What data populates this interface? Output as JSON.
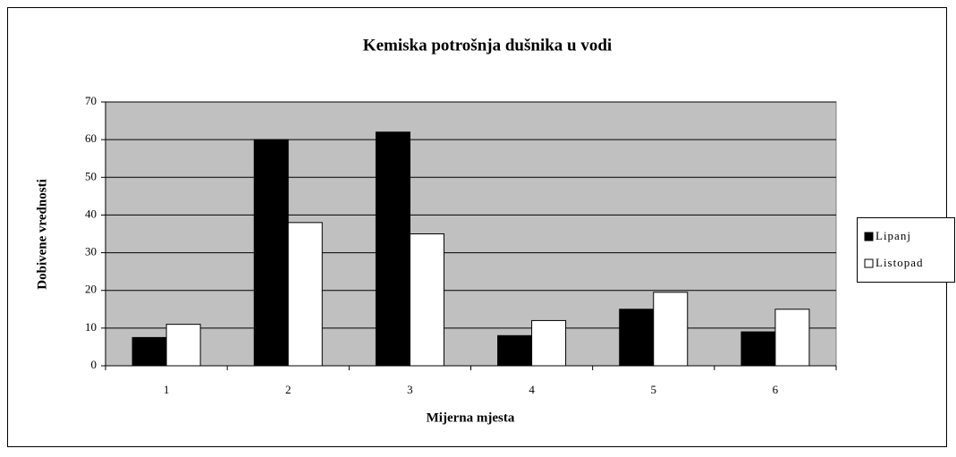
{
  "chart_data": {
    "type": "bar",
    "title": "Kemiska potrošnja dušnika u vodi",
    "x_label": "Mijerna mjesta",
    "y_label": "Dobivene vrednosti",
    "categories": [
      "1",
      "2",
      "3",
      "4",
      "5",
      "6"
    ],
    "series": [
      {
        "name": "Lipanj",
        "color": "#000000",
        "values": [
          7.5,
          60,
          62,
          8,
          15,
          9
        ]
      },
      {
        "name": "Listopad",
        "color": "#ffffff",
        "values": [
          11,
          38,
          35,
          12,
          19.5,
          15
        ]
      }
    ],
    "ylim": [
      0,
      70
    ],
    "yticks": [
      0,
      10,
      20,
      30,
      40,
      50,
      60,
      70
    ],
    "grid": true,
    "legend": "right",
    "plot_background": "#c0c0c0"
  }
}
